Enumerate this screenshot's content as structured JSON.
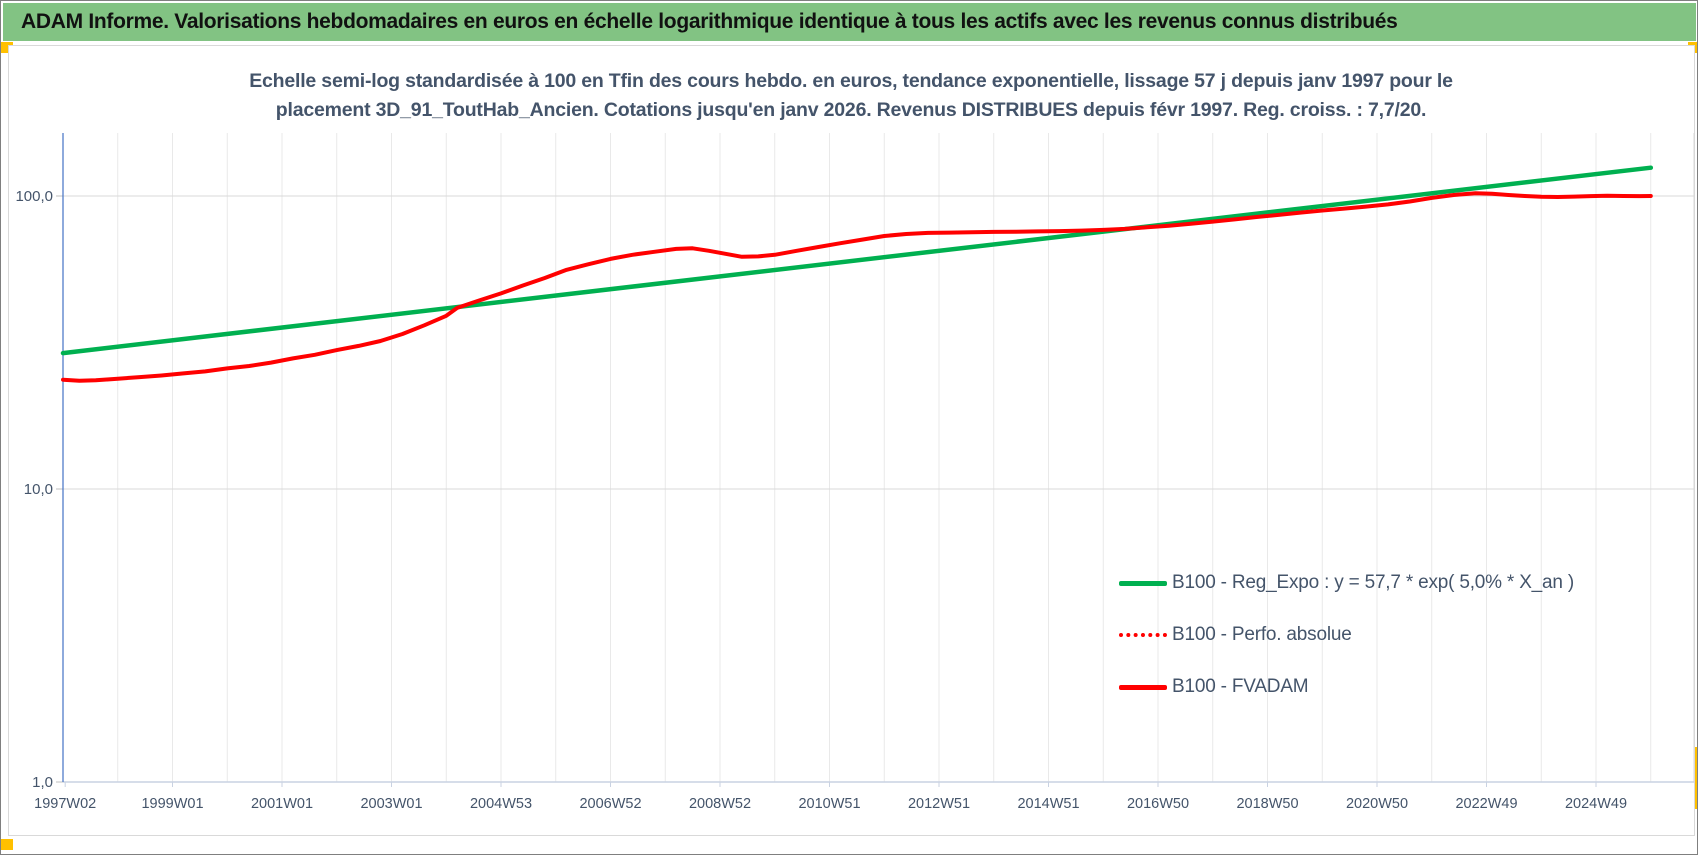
{
  "header": {
    "title": "ADAM Informe. Valorisations hebdomadaires en euros en échelle logarithmique identique à tous les actifs avec les revenus connus distribués",
    "bar_color": "#82c383",
    "marker_color": "#ffc000"
  },
  "chart_title": {
    "line1": "Echelle semi-log standardisée à 100 en Tfin des cours hebdo. en euros, tendance exponentielle, lissage 57 j depuis janv 1997 pour le",
    "line2": "placement 3D_91_ToutHab_Ancien. Cotations jusqu'en janv 2026. Revenus DISTRIBUES depuis févr 1997. Reg. croiss. : 7,7/20."
  },
  "legend": {
    "items": [
      {
        "label": "B100 - Reg_Expo : y = 57,7 * exp( 5,0% *  X_an )",
        "color": "#00b050",
        "style": "solid"
      },
      {
        "label": "B100 - Perfo. absolue",
        "color": "#ff0000",
        "style": "dotted"
      },
      {
        "label": "B100 - FVADAM",
        "color": "#ff0000",
        "style": "solid"
      }
    ]
  },
  "chart_data": {
    "type": "line",
    "y_scale": "log",
    "x_range_years": [
      1997.0,
      2026.8
    ],
    "y_range": [
      1,
      200
    ],
    "grid": "on",
    "legend_position": "inside-lower-right",
    "y_ticks": [
      {
        "v": 100,
        "label": "100,0"
      },
      {
        "v": 10,
        "label": "10,0"
      },
      {
        "v": 1,
        "label": "1,0"
      }
    ],
    "x_ticks": [
      {
        "t": 1997.04,
        "label": "1997W02"
      },
      {
        "t": 1999.0,
        "label": "1999W01"
      },
      {
        "t": 2001.0,
        "label": "2001W01"
      },
      {
        "t": 2003.0,
        "label": "2003W01"
      },
      {
        "t": 2005.0,
        "label": "2004W53"
      },
      {
        "t": 2007.0,
        "label": "2006W52"
      },
      {
        "t": 2009.0,
        "label": "2008W52"
      },
      {
        "t": 2011.0,
        "label": "2010W51"
      },
      {
        "t": 2013.0,
        "label": "2012W51"
      },
      {
        "t": 2015.0,
        "label": "2014W51"
      },
      {
        "t": 2017.0,
        "label": "2016W50"
      },
      {
        "t": 2019.0,
        "label": "2018W50"
      },
      {
        "t": 2021.0,
        "label": "2020W50"
      },
      {
        "t": 2023.0,
        "label": "2022W49"
      },
      {
        "t": 2025.0,
        "label": "2024W49"
      }
    ],
    "series": [
      {
        "name": "B100 - Reg_Expo : y = 57,7 * exp( 5,0% *  X_an )",
        "color": "#00b050",
        "style": "solid",
        "width": 4.5,
        "points": [
          [
            1997.0,
            29.1
          ],
          [
            2026.0,
            124.9
          ]
        ]
      },
      {
        "name": "B100 - Perfo. absolue",
        "color": "#ff0000",
        "style": "dotted",
        "width": 3,
        "points_ref": 2
      },
      {
        "name": "B100 - FVADAM",
        "color": "#ff0000",
        "style": "solid",
        "width": 4,
        "points": [
          [
            1997.0,
            23.6
          ],
          [
            1997.3,
            23.4
          ],
          [
            1997.6,
            23.5
          ],
          [
            1998.0,
            23.8
          ],
          [
            1998.4,
            24.1
          ],
          [
            1998.8,
            24.4
          ],
          [
            1999.2,
            24.8
          ],
          [
            1999.6,
            25.2
          ],
          [
            2000.0,
            25.8
          ],
          [
            2000.4,
            26.3
          ],
          [
            2000.8,
            27.0
          ],
          [
            2001.2,
            27.9
          ],
          [
            2001.6,
            28.7
          ],
          [
            2002.0,
            29.8
          ],
          [
            2002.4,
            30.8
          ],
          [
            2002.8,
            32.0
          ],
          [
            2003.2,
            33.8
          ],
          [
            2003.6,
            36.2
          ],
          [
            2004.0,
            39.0
          ],
          [
            2004.2,
            41.5
          ],
          [
            2004.6,
            44.0
          ],
          [
            2005.0,
            46.5
          ],
          [
            2005.4,
            49.5
          ],
          [
            2005.8,
            52.5
          ],
          [
            2006.2,
            56.0
          ],
          [
            2006.6,
            58.5
          ],
          [
            2007.0,
            61.0
          ],
          [
            2007.4,
            63.0
          ],
          [
            2007.8,
            64.5
          ],
          [
            2008.2,
            66.0
          ],
          [
            2008.5,
            66.3
          ],
          [
            2008.8,
            65.0
          ],
          [
            2009.1,
            63.5
          ],
          [
            2009.4,
            62.0
          ],
          [
            2009.7,
            62.2
          ],
          [
            2010.0,
            63.0
          ],
          [
            2010.4,
            65.0
          ],
          [
            2010.8,
            67.0
          ],
          [
            2011.2,
            69.0
          ],
          [
            2011.6,
            71.0
          ],
          [
            2012.0,
            73.0
          ],
          [
            2012.4,
            74.2
          ],
          [
            2012.8,
            74.8
          ],
          [
            2013.2,
            75.0
          ],
          [
            2013.6,
            75.2
          ],
          [
            2014.0,
            75.4
          ],
          [
            2014.4,
            75.5
          ],
          [
            2014.8,
            75.7
          ],
          [
            2015.2,
            75.9
          ],
          [
            2015.6,
            76.2
          ],
          [
            2016.0,
            76.6
          ],
          [
            2016.4,
            77.2
          ],
          [
            2016.8,
            78.2
          ],
          [
            2017.2,
            79.2
          ],
          [
            2017.6,
            80.4
          ],
          [
            2018.0,
            81.8
          ],
          [
            2018.4,
            83.2
          ],
          [
            2018.8,
            84.8
          ],
          [
            2019.2,
            86.2
          ],
          [
            2019.6,
            87.8
          ],
          [
            2020.0,
            89.2
          ],
          [
            2020.4,
            90.6
          ],
          [
            2020.8,
            92.0
          ],
          [
            2021.2,
            93.6
          ],
          [
            2021.6,
            95.8
          ],
          [
            2022.0,
            98.5
          ],
          [
            2022.4,
            100.8
          ],
          [
            2022.8,
            102.2
          ],
          [
            2023.1,
            101.8
          ],
          [
            2023.4,
            100.8
          ],
          [
            2023.7,
            100.0
          ],
          [
            2024.0,
            99.4
          ],
          [
            2024.3,
            99.2
          ],
          [
            2024.6,
            99.5
          ],
          [
            2024.9,
            99.9
          ],
          [
            2025.2,
            100.2
          ],
          [
            2025.5,
            100.0
          ],
          [
            2025.8,
            99.9
          ],
          [
            2026.0,
            100.0
          ]
        ]
      }
    ],
    "colors": {
      "grid_v": "#e9e9e9",
      "grid_h": "#d9d9d9",
      "y_axis": "#4472c4",
      "x_axis": "#c9d2e2",
      "tick_label": "#44546a"
    }
  }
}
